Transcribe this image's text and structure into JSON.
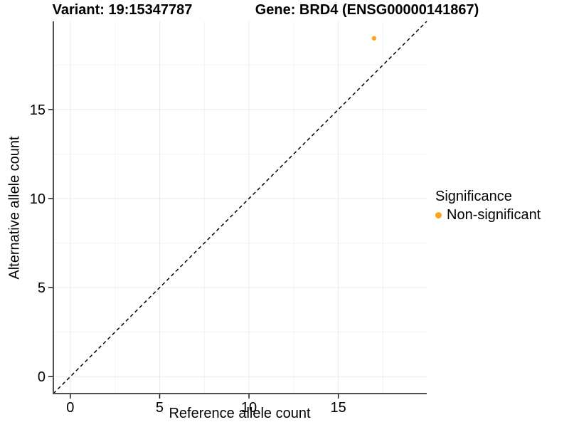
{
  "chart_data": {
    "type": "scatter",
    "title_left": "Variant: 19:15347787",
    "title_right": "Gene: BRD4 (ENSG00000141867)",
    "xlabel": "Reference allele count",
    "ylabel": "Alternative allele count",
    "xlim": [
      -0.95,
      19.95
    ],
    "ylim": [
      -0.95,
      19.95
    ],
    "x_ticks": [
      0,
      5,
      10,
      15
    ],
    "y_ticks": [
      0,
      5,
      10,
      15
    ],
    "x_minor_ticks": [
      2.5,
      7.5,
      12.5,
      17.5
    ],
    "y_minor_ticks": [
      2.5,
      7.5,
      12.5,
      17.5
    ],
    "grid": true,
    "series": [
      {
        "name": "Non-significant",
        "color": "#FAA41C",
        "points": [
          {
            "x": 17,
            "y": 19
          }
        ]
      }
    ],
    "reference_line": {
      "kind": "identity",
      "from": -0.95,
      "to": 19.95,
      "style": "dashed",
      "color": "#000000"
    },
    "legend": {
      "title": "Significance",
      "position": "right",
      "entries": [
        {
          "label": "Non-significant",
          "color": "#FAA41C"
        }
      ]
    },
    "colors": {
      "background": "#FFFFFF",
      "grid_major": "#E9E9E9",
      "grid_minor": "#F3F3F3",
      "axis_line": "#4F4F4F",
      "tick_mark": "#1A1A1A",
      "tick_label": "#000000"
    }
  }
}
